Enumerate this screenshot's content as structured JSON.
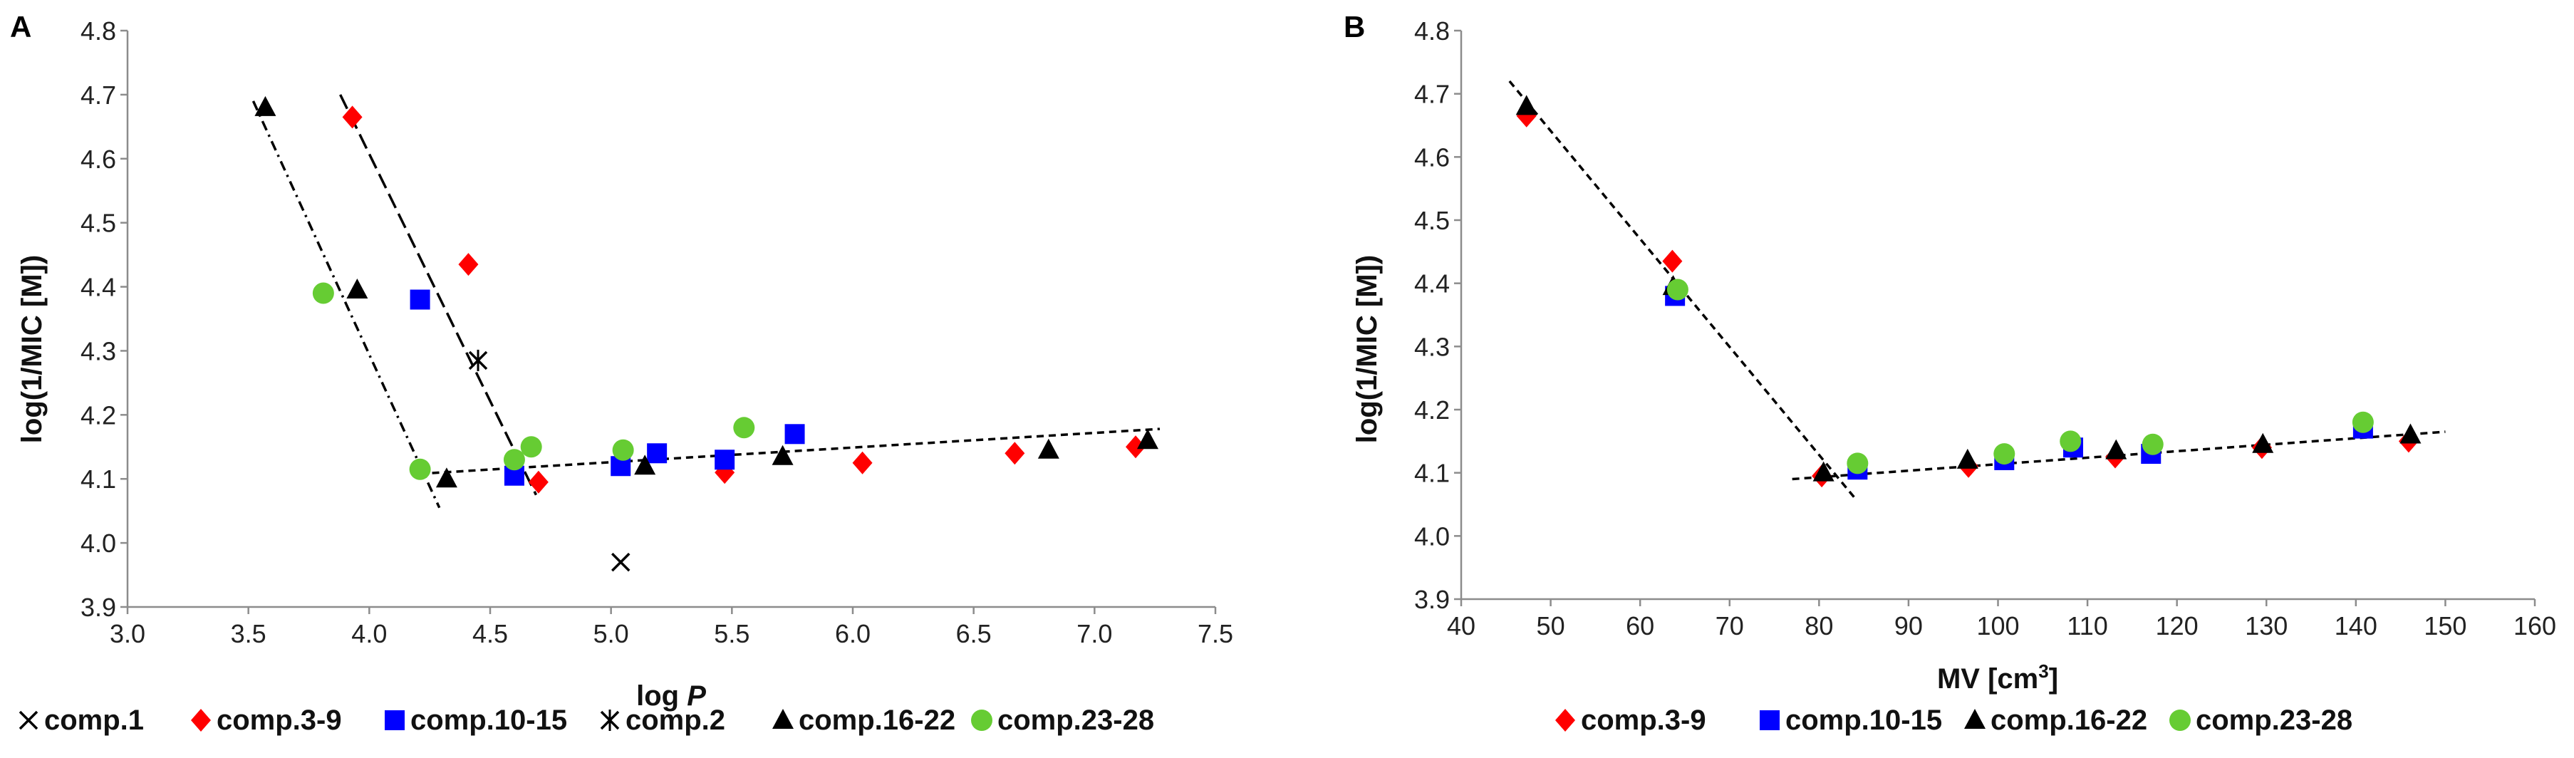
{
  "chart_data": [
    {
      "type": "scatter",
      "panel": "A",
      "xlabel_prefix": "log ",
      "xlabel_var": "P",
      "ylabel": "log(1/MIC [M])",
      "xlim": [
        3.0,
        7.5
      ],
      "ylim": [
        3.9,
        4.8
      ],
      "xticks": [
        "3.0",
        "3.5",
        "4.0",
        "4.5",
        "5.0",
        "5.5",
        "6.0",
        "6.5",
        "7.0",
        "7.5"
      ],
      "yticks": [
        "3.9",
        "4.0",
        "4.1",
        "4.2",
        "4.3",
        "4.4",
        "4.5",
        "4.6",
        "4.7",
        "4.8"
      ],
      "grid": false,
      "series": [
        {
          "name": "comp.1",
          "marker": "x",
          "color": "#000000",
          "points": [
            [
              5.04,
              3.97
            ]
          ]
        },
        {
          "name": "comp.3-9",
          "marker": "diamond",
          "color": "#ff0000",
          "points": [
            [
              3.93,
              4.665
            ],
            [
              4.41,
              4.435
            ],
            [
              4.7,
              4.095
            ],
            [
              5.47,
              4.11
            ],
            [
              6.04,
              4.125
            ],
            [
              6.67,
              4.14
            ],
            [
              7.17,
              4.15
            ]
          ]
        },
        {
          "name": "comp.10-15",
          "marker": "square",
          "color": "#0000ff",
          "points": [
            [
              4.21,
              4.38
            ],
            [
              4.6,
              4.105
            ],
            [
              5.04,
              4.12
            ],
            [
              5.19,
              4.14
            ],
            [
              5.47,
              4.13
            ],
            [
              5.76,
              4.17
            ]
          ]
        },
        {
          "name": "comp.2",
          "marker": "star",
          "color": "#000000",
          "points": [
            [
              4.45,
              4.285
            ]
          ]
        },
        {
          "name": "comp.16-22",
          "marker": "triangle",
          "color": "#000000",
          "points": [
            [
              3.57,
              4.68
            ],
            [
              3.95,
              4.395
            ],
            [
              4.32,
              4.1
            ],
            [
              5.14,
              4.12
            ],
            [
              5.71,
              4.135
            ],
            [
              6.81,
              4.145
            ],
            [
              7.22,
              4.16
            ]
          ]
        },
        {
          "name": "comp.23-28",
          "marker": "circle",
          "color": "#66cc33",
          "points": [
            [
              3.81,
              4.39
            ],
            [
              4.21,
              4.115
            ],
            [
              4.6,
              4.13
            ],
            [
              4.67,
              4.15
            ],
            [
              5.05,
              4.145
            ],
            [
              5.55,
              4.18
            ]
          ]
        }
      ],
      "trendlines": [
        {
          "style": "dashdot",
          "from": [
            3.52,
            4.69
          ],
          "to": [
            4.29,
            4.055
          ]
        },
        {
          "style": "longdash",
          "from": [
            3.88,
            4.7
          ],
          "to": [
            4.69,
            4.075
          ]
        },
        {
          "style": "dashed",
          "from": [
            4.21,
            4.108
          ],
          "to": [
            7.27,
            4.178
          ]
        }
      ]
    },
    {
      "type": "scatter",
      "panel": "B",
      "xlabel_prefix": "MV [cm",
      "xlabel_sup": "3",
      "xlabel_suffix": "]",
      "ylabel": "log(1/MIC [M])",
      "xlim": [
        40,
        160
      ],
      "ylim": [
        3.9,
        4.8
      ],
      "xticks": [
        "40",
        "50",
        "60",
        "70",
        "80",
        "90",
        "100",
        "110",
        "120",
        "130",
        "140",
        "150",
        "160"
      ],
      "yticks": [
        "3.9",
        "4.0",
        "4.1",
        "4.2",
        "4.3",
        "4.4",
        "4.5",
        "4.6",
        "4.7",
        "4.8"
      ],
      "grid": false,
      "series": [
        {
          "name": "comp.3-9",
          "marker": "diamond",
          "color": "#ff0000",
          "points": [
            [
              47.3,
              4.665
            ],
            [
              63.6,
              4.435
            ],
            [
              80.3,
              4.095
            ],
            [
              96.7,
              4.11
            ],
            [
              113.1,
              4.125
            ],
            [
              129.5,
              4.14
            ],
            [
              145.9,
              4.15
            ]
          ]
        },
        {
          "name": "comp.10-15",
          "marker": "square",
          "color": "#0000ff",
          "points": [
            [
              63.9,
              4.38
            ],
            [
              84.3,
              4.105
            ],
            [
              100.7,
              4.12
            ],
            [
              108.4,
              4.14
            ],
            [
              117.1,
              4.13
            ],
            [
              140.8,
              4.17
            ]
          ]
        },
        {
          "name": "comp.16-22",
          "marker": "triangle",
          "color": "#000000",
          "points": [
            [
              47.3,
              4.68
            ],
            [
              63.7,
              4.395
            ],
            [
              80.5,
              4.1
            ],
            [
              96.6,
              4.12
            ],
            [
              113.2,
              4.135
            ],
            [
              129.6,
              4.145
            ],
            [
              146.1,
              4.16
            ]
          ]
        },
        {
          "name": "comp.23-28",
          "marker": "circle",
          "color": "#66cc33",
          "points": [
            [
              64.2,
              4.39
            ],
            [
              84.3,
              4.115
            ],
            [
              100.7,
              4.13
            ],
            [
              108.1,
              4.15
            ],
            [
              117.3,
              4.145
            ],
            [
              140.8,
              4.18
            ]
          ]
        }
      ],
      "trendlines": [
        {
          "style": "dashed",
          "from": [
            45.4,
            4.72
          ],
          "to": [
            84.0,
            4.06
          ]
        },
        {
          "style": "dashed",
          "from": [
            77.0,
            4.09
          ],
          "to": [
            150.0,
            4.165
          ]
        }
      ]
    }
  ]
}
